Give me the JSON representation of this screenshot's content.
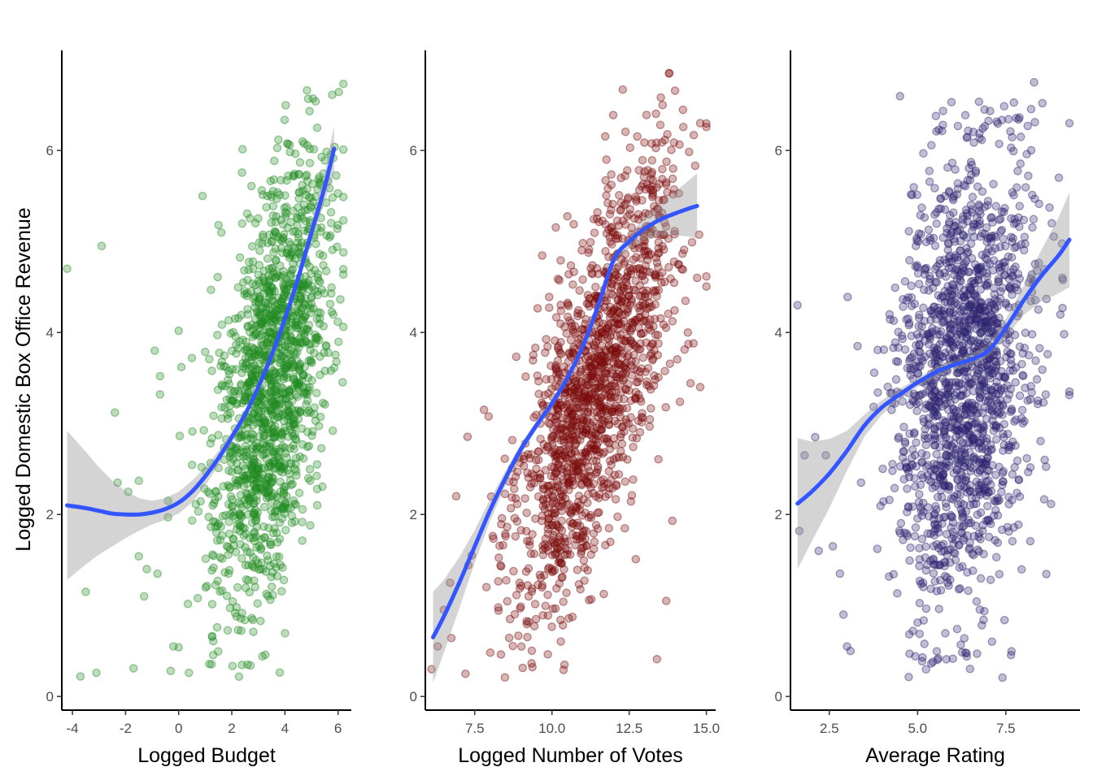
{
  "y_axis_title": "Logged Domestic Box Office Revenue",
  "chart_data": [
    {
      "type": "scatter",
      "xlabel": "Logged Budget",
      "ylabel": "Logged Domestic Box Office Revenue",
      "xlim": [
        -4.4,
        6.5
      ],
      "ylim": [
        -0.15,
        7.1
      ],
      "x_ticks": [
        -4,
        -2,
        0,
        2,
        4,
        6
      ],
      "x_tick_labels": [
        "-4",
        "-2",
        "0",
        "2",
        "4",
        "6"
      ],
      "y_ticks": [
        0,
        2,
        4,
        6
      ],
      "y_tick_labels": [
        "0",
        "2",
        "4",
        "6"
      ],
      "point_color": "#228B22",
      "fit_color": "#3355FF",
      "band_color": "#999999",
      "grid": false,
      "legend": "none",
      "point_cloud": {
        "n": 1500,
        "x_center": 3.5,
        "x_sd": 1.1,
        "y_intercept": 1.3,
        "y_slope": 0.62,
        "y_sd": 1.1,
        "y_min": 0.2,
        "y_max": 6.8,
        "outlier_points": [
          [
            -4.2,
            4.7
          ],
          [
            -2.9,
            4.95
          ],
          [
            -3.7,
            0.22
          ],
          [
            -3.1,
            0.26
          ],
          [
            -1.7,
            0.31
          ],
          [
            -3.5,
            1.15
          ],
          [
            -2.4,
            3.12
          ],
          [
            -2.3,
            2.35
          ],
          [
            -1.9,
            2.25
          ],
          [
            -1.5,
            2.37
          ],
          [
            -1.2,
            1.4
          ],
          [
            -1.5,
            1.54
          ],
          [
            -0.9,
            3.8
          ],
          [
            -0.7,
            3.52
          ],
          [
            -0.7,
            3.32
          ],
          [
            -0.4,
            2.15
          ],
          [
            -0.4,
            1.97
          ],
          [
            -0.2,
            0.55
          ],
          [
            -0.3,
            0.28
          ],
          [
            0.0,
            0.54
          ],
          [
            0.0,
            4.02
          ],
          [
            0.1,
            3.62
          ],
          [
            0.5,
            3.72
          ],
          [
            0.9,
            5.5
          ],
          [
            1.5,
            5.18
          ],
          [
            -1.3,
            1.1
          ],
          [
            -0.8,
            1.35
          ]
        ]
      },
      "fit_line": {
        "x": [
          -4.2,
          -3.5,
          -3,
          -2.5,
          -2,
          -1.5,
          -1,
          -0.5,
          0,
          0.5,
          1,
          1.5,
          2,
          2.5,
          3,
          3.5,
          4,
          4.5,
          5,
          5.5,
          5.85
        ],
        "y": [
          2.1,
          2.07,
          2.04,
          2.01,
          2.0,
          2.0,
          2.02,
          2.06,
          2.13,
          2.25,
          2.42,
          2.62,
          2.85,
          3.1,
          3.4,
          3.75,
          4.15,
          4.6,
          5.1,
          5.6,
          6.02
        ],
        "band_halfwidth": [
          0.82,
          0.62,
          0.48,
          0.36,
          0.26,
          0.18,
          0.13,
          0.12,
          0.12,
          0.12,
          0.1,
          0.08,
          0.06,
          0.04,
          0.04,
          0.04,
          0.05,
          0.07,
          0.1,
          0.16,
          0.25
        ]
      }
    },
    {
      "type": "scatter",
      "xlabel": "Logged Number of Votes",
      "ylabel": "",
      "xlim": [
        5.9,
        15.3
      ],
      "ylim": [
        -0.15,
        7.1
      ],
      "x_ticks": [
        7.5,
        10,
        12.5,
        15
      ],
      "x_tick_labels": [
        "7.5",
        "10.0",
        "12.5",
        "15.0"
      ],
      "y_ticks": [
        0,
        2,
        4,
        6
      ],
      "y_tick_labels": [
        "0",
        "2",
        "4",
        "6"
      ],
      "point_color": "#7A0A0A",
      "fit_color": "#3355FF",
      "band_color": "#999999",
      "grid": false,
      "legend": "none",
      "point_cloud": {
        "n": 1500,
        "x_center": 11.4,
        "x_sd": 1.35,
        "y_intercept": -4.35,
        "y_slope": 0.68,
        "y_sd": 0.85,
        "y_min": 0.2,
        "y_max": 6.9,
        "outlier_points": [
          [
            6.1,
            0.3
          ],
          [
            6.3,
            0.55
          ],
          [
            6.5,
            0.95
          ],
          [
            6.7,
            1.25
          ],
          [
            6.9,
            2.2
          ],
          [
            7.2,
            0.25
          ],
          [
            7.4,
            1.55
          ],
          [
            7.8,
            3.15
          ],
          [
            13.8,
            6.85
          ],
          [
            14.8,
            6.3
          ],
          [
            14.7,
            4.6
          ],
          [
            14.8,
            3.4
          ],
          [
            13.9,
            1.93
          ],
          [
            13.4,
            0.41
          ],
          [
            13.7,
            1.05
          ],
          [
            14.4,
            4.0
          ]
        ]
      },
      "fit_line": {
        "x": [
          6.15,
          6.5,
          7,
          7.5,
          8,
          8.5,
          9,
          9.5,
          10,
          10.5,
          11,
          11.5,
          12,
          12.5,
          13,
          13.5,
          14,
          14.5,
          14.7
        ],
        "y": [
          0.65,
          0.88,
          1.25,
          1.65,
          2.05,
          2.4,
          2.72,
          2.98,
          3.22,
          3.5,
          3.85,
          4.3,
          4.8,
          5.0,
          5.14,
          5.24,
          5.31,
          5.37,
          5.39
        ],
        "band_halfwidth": [
          0.5,
          0.4,
          0.28,
          0.18,
          0.12,
          0.08,
          0.06,
          0.05,
          0.05,
          0.05,
          0.05,
          0.05,
          0.06,
          0.08,
          0.12,
          0.17,
          0.24,
          0.32,
          0.36
        ]
      }
    },
    {
      "type": "scatter",
      "xlabel": "Average Rating",
      "ylabel": "",
      "xlim": [
        1.4,
        9.6
      ],
      "ylim": [
        -0.15,
        7.1
      ],
      "x_ticks": [
        2.5,
        5,
        7.5
      ],
      "x_tick_labels": [
        "2.5",
        "5.0",
        "7.5"
      ],
      "y_ticks": [
        0,
        2,
        4,
        6
      ],
      "y_tick_labels": [
        "0",
        "2",
        "4",
        "6"
      ],
      "point_color": "#2E2570",
      "fit_color": "#3355FF",
      "band_color": "#999999",
      "grid": false,
      "legend": "none",
      "point_cloud": {
        "n": 1600,
        "x_center": 6.3,
        "x_sd": 0.95,
        "y_intercept": 1.6,
        "y_slope": 0.3,
        "y_sd": 1.25,
        "y_min": 0.2,
        "y_max": 6.6,
        "outlier_points": [
          [
            1.6,
            4.3
          ],
          [
            1.65,
            1.82
          ],
          [
            1.8,
            2.65
          ],
          [
            2.1,
            2.85
          ],
          [
            2.2,
            1.6
          ],
          [
            2.4,
            2.65
          ],
          [
            2.6,
            1.65
          ],
          [
            2.8,
            1.35
          ],
          [
            2.9,
            0.9
          ],
          [
            3.0,
            0.55
          ],
          [
            3.1,
            0.5
          ],
          [
            3.3,
            3.85
          ],
          [
            3.4,
            2.35
          ],
          [
            8.3,
            6.75
          ],
          [
            8.8,
            5.2
          ],
          [
            9.3,
            6.3
          ],
          [
            9.3,
            3.35
          ],
          [
            9.1,
            4.6
          ],
          [
            9.0,
            5.7
          ],
          [
            8.6,
            2.6
          ]
        ]
      },
      "fit_line": {
        "x": [
          1.6,
          2,
          2.5,
          3,
          3.5,
          4,
          4.5,
          5,
          5.5,
          6,
          6.5,
          7,
          7.5,
          8,
          8.5,
          9,
          9.3
        ],
        "y": [
          2.12,
          2.25,
          2.45,
          2.7,
          2.98,
          3.18,
          3.32,
          3.45,
          3.56,
          3.64,
          3.7,
          3.8,
          4.05,
          4.35,
          4.62,
          4.85,
          5.02
        ],
        "band_halfwidth": [
          0.72,
          0.55,
          0.38,
          0.22,
          0.12,
          0.08,
          0.06,
          0.05,
          0.05,
          0.05,
          0.06,
          0.07,
          0.1,
          0.16,
          0.28,
          0.42,
          0.52
        ]
      }
    }
  ]
}
